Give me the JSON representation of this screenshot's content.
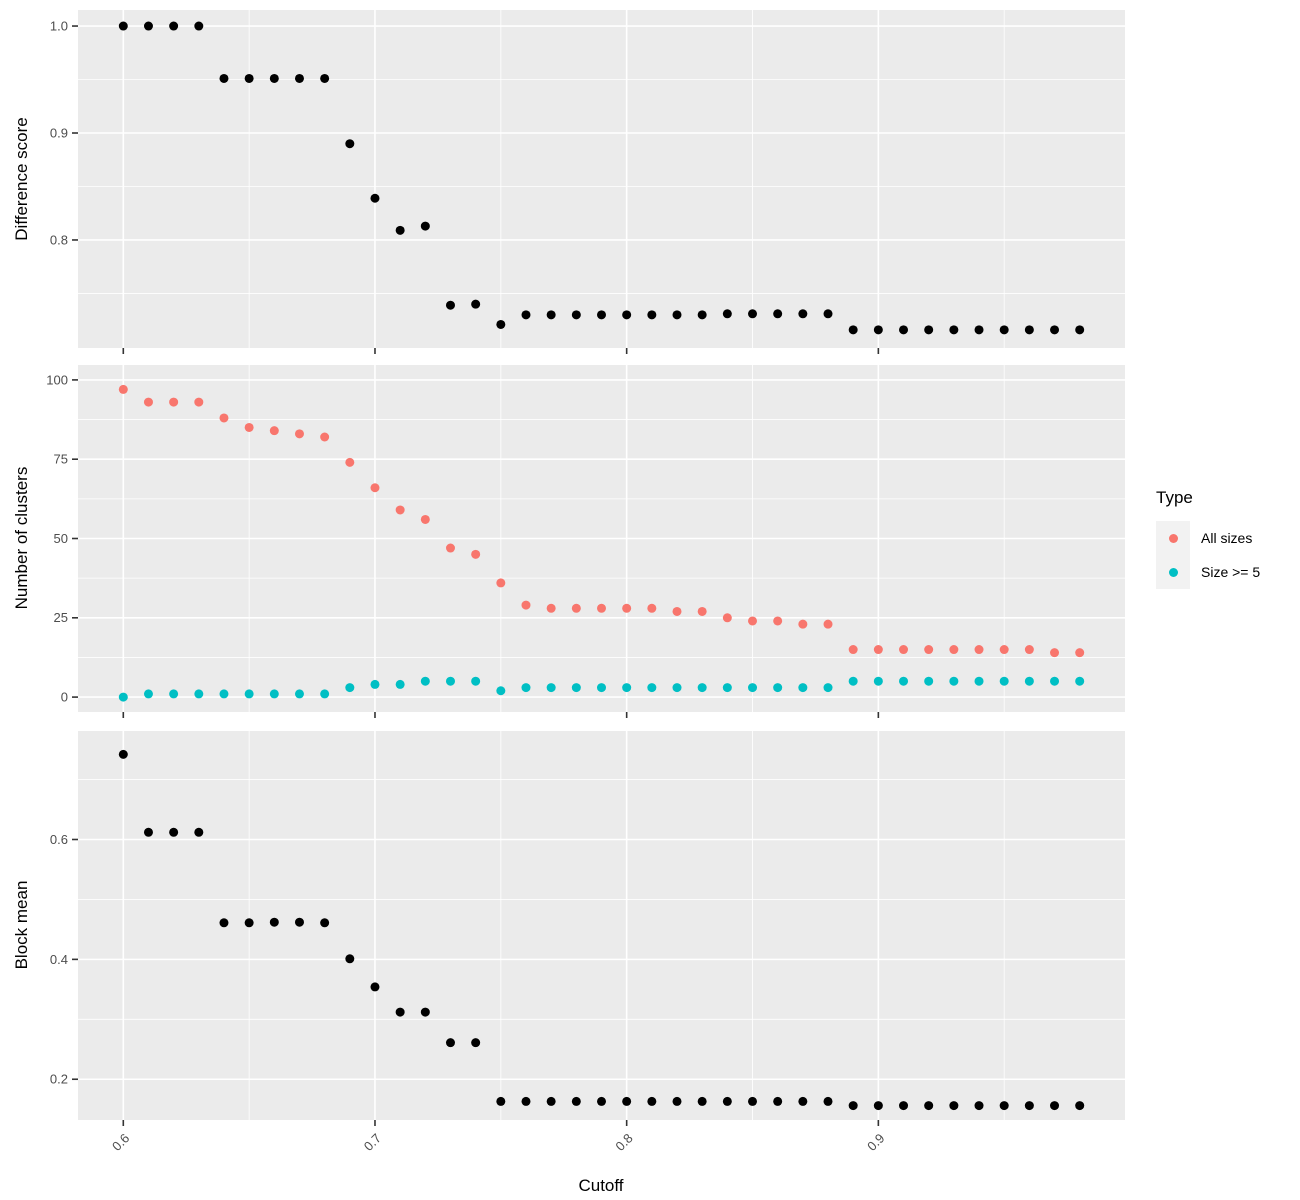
{
  "chart_data": {
    "type": "scatter",
    "title": "",
    "xlabel": "Cutoff",
    "xlim": [
      0.582,
      0.998
    ],
    "x_ticks": {
      "values": [
        0.6,
        0.7,
        0.8,
        0.9
      ],
      "labels": [
        "0.6",
        "0.7",
        "0.8",
        "0.9"
      ],
      "minor": [
        0.65,
        0.75,
        0.85,
        0.95
      ]
    },
    "x": [
      0.6,
      0.61,
      0.62,
      0.63,
      0.64,
      0.65,
      0.66,
      0.67,
      0.68,
      0.69,
      0.7,
      0.71,
      0.72,
      0.73,
      0.74,
      0.75,
      0.76,
      0.77,
      0.78,
      0.79,
      0.8,
      0.81,
      0.82,
      0.83,
      0.84,
      0.85,
      0.86,
      0.87,
      0.88,
      0.89,
      0.9,
      0.91,
      0.92,
      0.93,
      0.94,
      0.95,
      0.96,
      0.97,
      0.98
    ],
    "panels": [
      {
        "name": "difference-score",
        "ylabel": "Difference score",
        "ylim": [
          0.699,
          1.015
        ],
        "y_ticks": {
          "values": [
            1.0,
            0.9,
            0.8
          ],
          "labels": [
            "1.0",
            "0.9",
            "0.8"
          ],
          "minor": [
            0.95,
            0.85,
            0.75
          ]
        },
        "series": [
          {
            "name": "Difference score",
            "color": "#000000",
            "values": [
              1.0,
              1.0,
              1.0,
              1.0,
              0.951,
              0.951,
              0.951,
              0.951,
              0.951,
              0.89,
              0.839,
              0.809,
              0.813,
              0.739,
              0.74,
              0.721,
              0.73,
              0.73,
              0.73,
              0.73,
              0.73,
              0.73,
              0.73,
              0.73,
              0.731,
              0.731,
              0.731,
              0.731,
              0.731,
              0.716,
              0.716,
              0.716,
              0.716,
              0.716,
              0.716,
              0.716,
              0.716,
              0.716,
              0.716
            ]
          }
        ]
      },
      {
        "name": "number-of-clusters",
        "ylabel": "Number of clusters",
        "ylim": [
          -4.7,
          104.7
        ],
        "y_ticks": {
          "values": [
            100,
            75,
            50,
            25,
            0
          ],
          "labels": [
            "100",
            "75",
            "50",
            "25",
            "0"
          ],
          "minor": [
            87.5,
            62.5,
            37.5,
            12.5
          ]
        },
        "series": [
          {
            "name": "All sizes",
            "color": "#F8766D",
            "values": [
              97,
              93,
              93,
              93,
              88,
              85,
              84,
              83,
              82,
              74,
              66,
              59,
              56,
              47,
              45,
              36,
              29,
              28,
              28,
              28,
              28,
              28,
              27,
              27,
              25,
              24,
              24,
              23,
              23,
              15,
              15,
              15,
              15,
              15,
              15,
              15,
              15,
              14,
              14
            ]
          },
          {
            "name": "Size >= 5",
            "color": "#00BFC4",
            "values": [
              0,
              1,
              1,
              1,
              1,
              1,
              1,
              1,
              1,
              3,
              4,
              4,
              5,
              5,
              5,
              2,
              3,
              3,
              3,
              3,
              3,
              3,
              3,
              3,
              3,
              3,
              3,
              3,
              3,
              5,
              5,
              5,
              5,
              5,
              5,
              5,
              5,
              5,
              5
            ]
          }
        ]
      },
      {
        "name": "block-mean",
        "ylabel": "Block mean",
        "ylim": [
          0.132,
          0.781
        ],
        "y_ticks": {
          "values": [
            0.6,
            0.4,
            0.2
          ],
          "labels": [
            "0.6",
            "0.4",
            "0.2"
          ],
          "minor": [
            0.7,
            0.5,
            0.3
          ]
        },
        "series": [
          {
            "name": "Block mean",
            "color": "#000000",
            "values": [
              0.742,
              0.612,
              0.612,
              0.612,
              0.461,
              0.461,
              0.462,
              0.462,
              0.461,
              0.401,
              0.354,
              0.312,
              0.312,
              0.261,
              0.261,
              0.163,
              0.163,
              0.163,
              0.163,
              0.163,
              0.163,
              0.163,
              0.163,
              0.163,
              0.163,
              0.163,
              0.163,
              0.163,
              0.163,
              0.156,
              0.156,
              0.156,
              0.156,
              0.156,
              0.156,
              0.156,
              0.156,
              0.156,
              0.156
            ]
          }
        ]
      }
    ],
    "legend": {
      "title": "Type",
      "entries": [
        {
          "label": "All sizes",
          "color": "#F8766D"
        },
        {
          "label": "Size >= 5",
          "color": "#00BFC4"
        }
      ]
    },
    "style": {
      "panel_bg": "#EBEBEB",
      "grid_color": "#FFFFFF",
      "tick_color": "#333333",
      "tick_label_color": "#4D4D4D",
      "axis_title_color": "#000000",
      "legend_key_bg": "#F2F2F2"
    }
  }
}
